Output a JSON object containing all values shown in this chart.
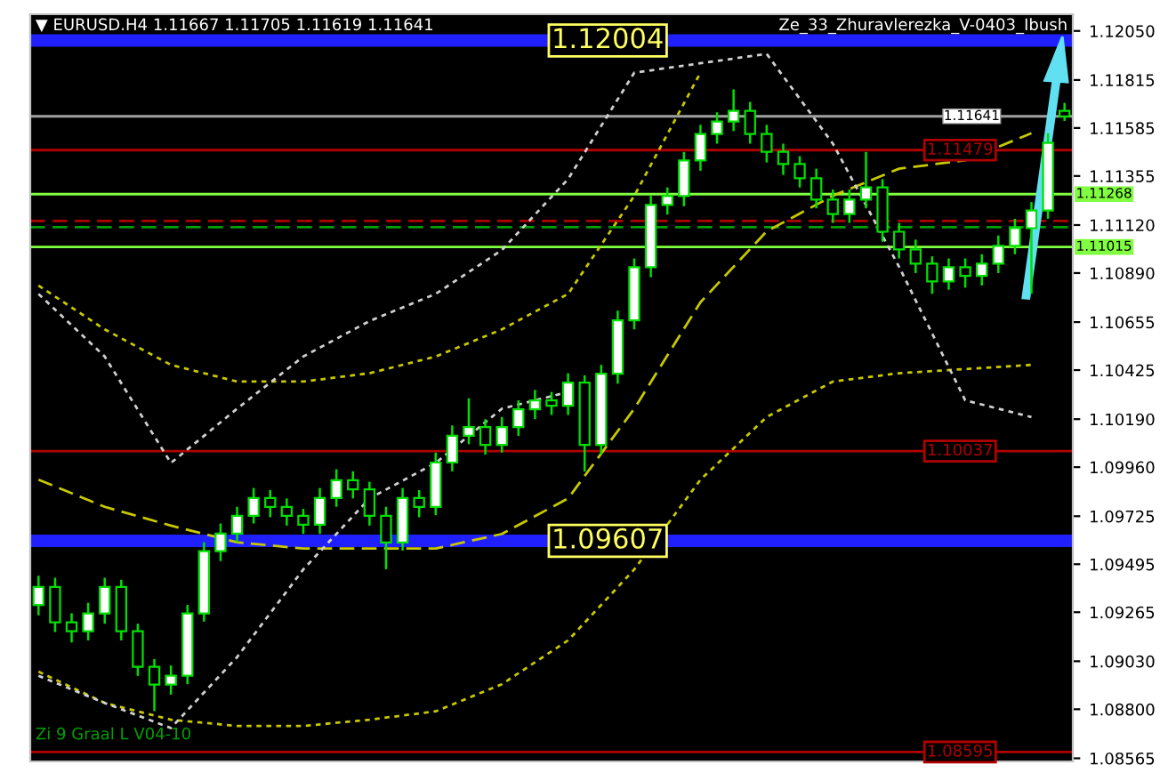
{
  "chart_data": {
    "type": "candlestick",
    "title": "▼ EURUSD.H4 1.11667 1.11705 1.11619 1.11641",
    "annotations": [
      "Ze_33_Zhuravlerezka_V-0403_Ibush",
      "Zi 9 Graal L V04-10"
    ],
    "categories": [
      null,
      null,
      null,
      null,
      null,
      null,
      null,
      null,
      null,
      null,
      null,
      null,
      null,
      null,
      null,
      null,
      null,
      null,
      null,
      null,
      null,
      null,
      null,
      null,
      null,
      null,
      null,
      null,
      null,
      null,
      null,
      null,
      null,
      null,
      null,
      null,
      null,
      null,
      null,
      null,
      null,
      null,
      null,
      null,
      null,
      null,
      null,
      null,
      null,
      null,
      null,
      null,
      null,
      null,
      null,
      null,
      null,
      null,
      null,
      null,
      null,
      null,
      null
    ],
    "color": "#00e000",
    "ohlc": [
      [
        1.093,
        1.0944,
        1.0925,
        1.09386
      ],
      [
        1.09386,
        1.0943,
        1.0917,
        1.09216
      ],
      [
        1.09216,
        1.0926,
        1.0912,
        1.09174
      ],
      [
        1.09174,
        1.0931,
        1.0913,
        1.09259
      ],
      [
        1.09259,
        1.0943,
        1.0921,
        1.09386
      ],
      [
        1.09386,
        1.0942,
        1.0913,
        1.09174
      ],
      [
        1.09174,
        1.0921,
        1.0896,
        1.09003
      ],
      [
        1.09003,
        1.0904,
        1.08791,
        1.08918
      ],
      [
        1.08918,
        1.0901,
        1.0887,
        1.08961
      ],
      [
        1.08961,
        1.093,
        1.0892,
        1.09259
      ],
      [
        1.09259,
        1.096,
        1.0922,
        1.09557
      ],
      [
        1.09557,
        1.0969,
        1.0951,
        1.09642
      ],
      [
        1.09642,
        1.0977,
        1.096,
        1.09727
      ],
      [
        1.09727,
        1.0986,
        1.0969,
        1.09812
      ],
      [
        1.09812,
        1.0985,
        1.0972,
        1.09769
      ],
      [
        1.09769,
        1.0981,
        1.0968,
        1.09727
      ],
      [
        1.09727,
        1.0976,
        1.0964,
        1.09684
      ],
      [
        1.09684,
        1.0986,
        1.0964,
        1.09812
      ],
      [
        1.09812,
        1.0995,
        1.0977,
        1.09897
      ],
      [
        1.09897,
        1.0994,
        1.0981,
        1.09854
      ],
      [
        1.09854,
        1.0989,
        1.0968,
        1.09727
      ],
      [
        1.09727,
        1.0977,
        1.09471,
        1.09599
      ],
      [
        1.09599,
        1.0986,
        1.0956,
        1.09812
      ],
      [
        1.09812,
        1.0985,
        1.0972,
        1.09769
      ],
      [
        1.09769,
        1.1003,
        1.0973,
        1.09982
      ],
      [
        1.09982,
        1.1016,
        1.0994,
        1.1011
      ],
      [
        1.1011,
        1.1029,
        1.1007,
        1.10152
      ],
      [
        1.10152,
        1.1019,
        1.1002,
        1.10067
      ],
      [
        1.10067,
        1.102,
        1.1003,
        1.10152
      ],
      [
        1.10152,
        1.1028,
        1.1011,
        1.10237
      ],
      [
        1.10237,
        1.1033,
        1.1019,
        1.1028
      ],
      [
        1.1028,
        1.1032,
        1.1021,
        1.10254
      ],
      [
        1.10254,
        1.1041,
        1.1021,
        1.10365
      ],
      [
        1.10365,
        1.104,
        1.09939,
        1.10067
      ],
      [
        1.10067,
        1.1045,
        1.1002,
        1.10408
      ],
      [
        1.10408,
        1.1071,
        1.1036,
        1.10663
      ],
      [
        1.10663,
        1.1096,
        1.1062,
        1.10918
      ],
      [
        1.10918,
        1.1126,
        1.1087,
        1.11216
      ],
      [
        1.11216,
        1.113,
        1.1117,
        1.11259
      ],
      [
        1.11259,
        1.1147,
        1.1121,
        1.11429
      ],
      [
        1.11429,
        1.116,
        1.1138,
        1.11556
      ],
      [
        1.11556,
        1.1166,
        1.1151,
        1.11616
      ],
      [
        1.11616,
        1.1177,
        1.1157,
        1.11667
      ],
      [
        1.11667,
        1.1171,
        1.1151,
        1.11556
      ],
      [
        1.11556,
        1.116,
        1.1142,
        1.11471
      ],
      [
        1.11471,
        1.1151,
        1.1136,
        1.11412
      ],
      [
        1.11412,
        1.1145,
        1.113,
        1.11344
      ],
      [
        1.11344,
        1.1139,
        1.112,
        1.11242
      ],
      [
        1.11242,
        1.1129,
        1.1113,
        1.11173
      ],
      [
        1.11173,
        1.1129,
        1.1113,
        1.11242
      ],
      [
        1.11242,
        1.1147,
        1.112,
        1.11301
      ],
      [
        1.11301,
        1.1134,
        1.1104,
        1.11088
      ],
      [
        1.11088,
        1.1113,
        1.1096,
        1.11003
      ],
      [
        1.11003,
        1.1105,
        1.1089,
        1.10935
      ],
      [
        1.10935,
        1.1097,
        1.1079,
        1.1085
      ],
      [
        1.1085,
        1.1096,
        1.1081,
        1.10918
      ],
      [
        1.10918,
        1.1096,
        1.1082,
        1.10876
      ],
      [
        1.10876,
        1.1098,
        1.1083,
        1.10935
      ],
      [
        1.10935,
        1.1107,
        1.1089,
        1.1102
      ],
      [
        1.1102,
        1.1115,
        1.1098,
        1.11105
      ],
      [
        1.11105,
        1.1123,
        1.10791,
        1.1119
      ],
      [
        1.1119,
        1.1156,
        1.1115,
        1.11514
      ],
      [
        1.11667,
        1.11705,
        1.11619,
        1.11641
      ]
    ],
    "series": [
      {
        "type": "line",
        "color": "#c8c800",
        "line_style": "dotted",
        "values": [
          1.1083,
          null,
          null,
          null,
          1.1062,
          null,
          null,
          null,
          1.1045,
          null,
          null,
          null,
          1.1037,
          null,
          null,
          null,
          1.1037,
          null,
          null,
          null,
          1.1041,
          null,
          null,
          null,
          1.1049,
          null,
          null,
          null,
          1.1062,
          null,
          null,
          null,
          1.1079,
          null,
          null,
          null,
          1.1126,
          null,
          null,
          null,
          1.1185,
          null,
          null,
          null,
          null,
          null,
          null,
          null,
          null,
          null,
          null,
          null,
          null,
          null,
          null,
          null,
          null,
          null,
          null,
          null,
          null,
          null,
          null
        ]
      },
      {
        "type": "line",
        "color": "#c8c800",
        "line_style": "dotted",
        "values": [
          1.0898,
          null,
          null,
          null,
          1.0883,
          null,
          null,
          null,
          1.0875,
          null,
          null,
          null,
          1.0872,
          null,
          null,
          null,
          1.0872,
          null,
          null,
          null,
          1.0875,
          null,
          null,
          null,
          1.0879,
          null,
          null,
          null,
          1.0892,
          null,
          null,
          null,
          1.0913,
          null,
          null,
          null,
          1.0947,
          null,
          null,
          null,
          1.099,
          null,
          null,
          null,
          1.102,
          null,
          null,
          null,
          1.1037,
          null,
          null,
          null,
          1.1041,
          null,
          null,
          null,
          1.1043,
          null,
          null,
          null,
          1.1045,
          null,
          null
        ]
      },
      {
        "type": "line",
        "color": "#c8c800",
        "line_style": "dashed",
        "values": [
          1.099,
          null,
          null,
          null,
          1.0977,
          null,
          null,
          null,
          1.0968,
          null,
          null,
          null,
          1.096,
          null,
          null,
          null,
          1.0957,
          null,
          null,
          null,
          1.0957,
          null,
          null,
          null,
          1.0957,
          null,
          null,
          null,
          1.0964,
          null,
          null,
          null,
          1.0981,
          null,
          null,
          null,
          1.1024,
          null,
          null,
          null,
          1.1075,
          null,
          null,
          null,
          1.1109,
          null,
          null,
          null,
          1.1126,
          null,
          null,
          null,
          1.1139,
          null,
          null,
          null,
          1.1143,
          null,
          null,
          null,
          1.1156,
          null,
          null
        ]
      },
      {
        "type": "line",
        "color": "#d0d0d0",
        "line_style": "dotted",
        "values": [
          1.1079,
          null,
          null,
          null,
          1.1049,
          null,
          null,
          null,
          1.0998,
          null,
          null,
          null,
          1.1024,
          null,
          null,
          null,
          1.1049,
          null,
          null,
          null,
          1.1066,
          null,
          null,
          null,
          1.1079,
          null,
          null,
          null,
          1.11,
          null,
          null,
          null,
          1.1134,
          null,
          null,
          null,
          1.1185,
          null,
          null,
          null,
          null,
          null,
          null,
          null,
          1.1194,
          null,
          null,
          null,
          1.1151,
          null,
          null,
          null,
          1.1092,
          null,
          null,
          null,
          1.1028,
          null,
          null,
          null,
          1.102,
          null,
          null
        ]
      },
      {
        "type": "line",
        "color": "#d0d0d0",
        "line_style": "dotted",
        "values": [
          1.0896,
          null,
          null,
          null,
          1.0883,
          null,
          null,
          null,
          1.0871,
          null,
          null,
          null,
          1.0905,
          null,
          null,
          null,
          1.0947,
          null,
          null,
          null,
          1.0981,
          null,
          null,
          null,
          1.0998,
          null,
          null,
          null,
          1.1024,
          null,
          null,
          null,
          1.1032,
          null,
          null,
          null,
          null,
          null,
          null,
          null,
          null,
          null,
          null,
          null,
          null,
          null,
          null,
          null,
          null,
          null,
          null,
          null,
          null,
          null,
          null,
          null,
          null,
          null,
          null,
          null,
          null,
          null,
          null
        ]
      }
    ],
    "ref_lines": [
      {
        "axis": "y",
        "value": 1.12004,
        "label": "1.12004",
        "color": "#2020ff"
      },
      {
        "axis": "y",
        "value": 1.11641,
        "label": "1.11641",
        "color": "#a0a0a0"
      },
      {
        "axis": "y",
        "value": 1.11479,
        "label": "1.11479",
        "color": "#b00000"
      },
      {
        "axis": "y",
        "value": 1.11268,
        "label": "1.11268",
        "color": "#80ff40"
      },
      {
        "axis": "y",
        "value": 1.1114,
        "color": "#b00000",
        "line_style": "dashed"
      },
      {
        "axis": "y",
        "value": 1.1111,
        "color": "#00a000",
        "line_style": "dashed"
      },
      {
        "axis": "y",
        "value": 1.11015,
        "label": "1.11015",
        "color": "#80ff40"
      },
      {
        "axis": "y",
        "value": 1.10037,
        "label": "1.10037",
        "color": "#b00000"
      },
      {
        "axis": "y",
        "value": 1.09607,
        "label": "1.09607",
        "color": "#2020ff"
      },
      {
        "axis": "y",
        "value": 1.08595,
        "label": "1.08595",
        "color": "#b00000"
      }
    ],
    "ylim": [
      1.0855,
      1.1213
    ],
    "yticks": [
      {
        "value": 1.1205,
        "label": "1.12050"
      },
      {
        "value": 1.11815,
        "label": "1.11815"
      },
      {
        "value": 1.11585,
        "label": "1.11585"
      },
      {
        "value": 1.11355,
        "label": "1.11355"
      },
      {
        "value": 1.1112,
        "label": "1.11120"
      },
      {
        "value": 1.1089,
        "label": "1.10890"
      },
      {
        "value": 1.10655,
        "label": "1.10655"
      },
      {
        "value": 1.10425,
        "label": "1.10425"
      },
      {
        "value": 1.1019,
        "label": "1.10190"
      },
      {
        "value": 1.0996,
        "label": "1.09960"
      },
      {
        "value": 1.09725,
        "label": "1.09725"
      },
      {
        "value": 1.09495,
        "label": "1.09495"
      },
      {
        "value": 1.09265,
        "label": "1.09265"
      },
      {
        "value": 1.0903,
        "label": "1.09030"
      },
      {
        "value": 1.088,
        "label": "1.08800"
      },
      {
        "value": 1.08565,
        "label": "1.08565"
      }
    ],
    "tick_labels": "y",
    "grid": false
  }
}
